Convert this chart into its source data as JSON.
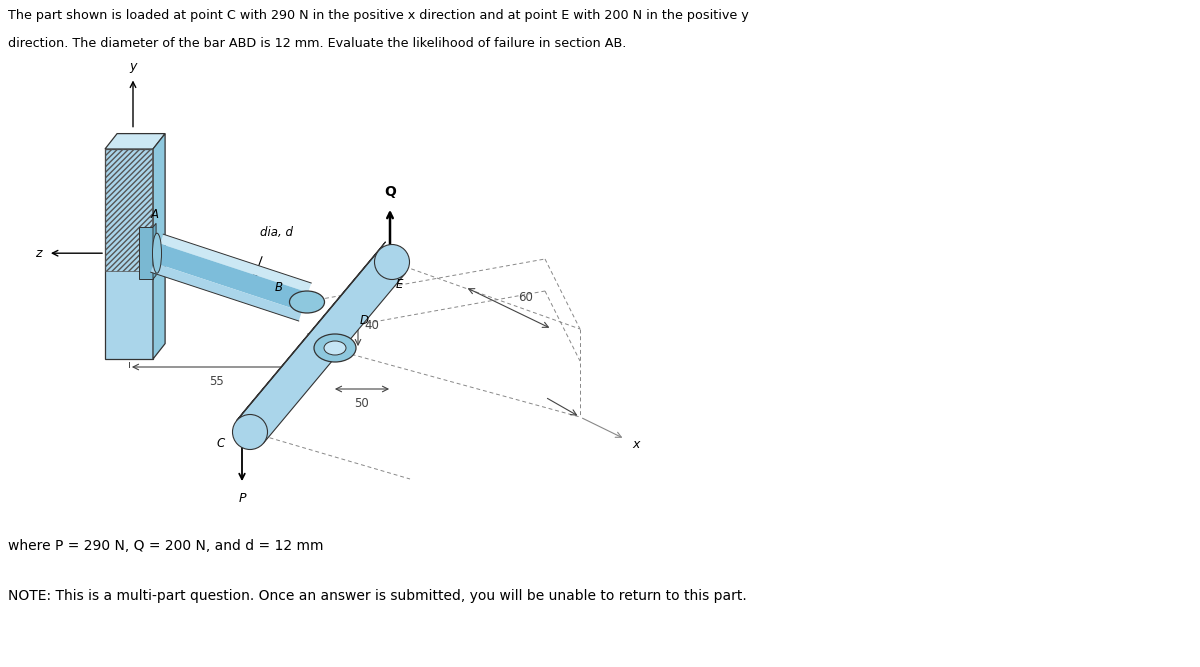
{
  "title_line1": "The part shown is loaded at point C with 290 N in the positive x direction and at point E with 200 N in the positive y",
  "title_line2": "direction. The diameter of the bar ABD is 12 mm. Evaluate the likelihood of failure in section AB.",
  "note_text": "where P = 290 N, Q = 200 N, and d = 12 mm",
  "note2_text": "NOTE: This is a multi-part question. Once an answer is submitted, you will be unable to return to this part.",
  "bg_color": "#ffffff",
  "lb": "#aad5ea",
  "mb": "#7dbdda",
  "db": "#5aa0c0",
  "vlb": "#cce8f4",
  "dim_color": "#444444",
  "text_color": "#000000",
  "gray": "#888888"
}
